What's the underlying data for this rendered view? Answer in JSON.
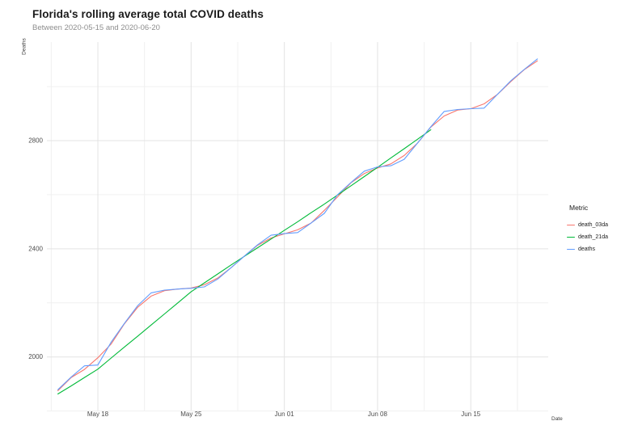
{
  "header": {
    "title": "Florida's rolling average total COVID deaths",
    "subtitle": "Between 2020-05-15 and 2020-06-20"
  },
  "chart_data": {
    "type": "line",
    "title": "Florida's rolling average total COVID deaths",
    "subtitle": "Between 2020-05-15 and 2020-06-20",
    "xlabel": "Date",
    "ylabel": "Deaths",
    "x_dates": [
      "2020-05-15",
      "2020-05-16",
      "2020-05-17",
      "2020-05-18",
      "2020-05-19",
      "2020-05-20",
      "2020-05-21",
      "2020-05-22",
      "2020-05-23",
      "2020-05-24",
      "2020-05-25",
      "2020-05-26",
      "2020-05-27",
      "2020-05-28",
      "2020-05-29",
      "2020-05-30",
      "2020-05-31",
      "2020-06-01",
      "2020-06-02",
      "2020-06-03",
      "2020-06-04",
      "2020-06-05",
      "2020-06-06",
      "2020-06-07",
      "2020-06-08",
      "2020-06-09",
      "2020-06-10",
      "2020-06-11",
      "2020-06-12",
      "2020-06-13",
      "2020-06-14",
      "2020-06-15",
      "2020-06-16",
      "2020-06-17",
      "2020-06-18",
      "2020-06-19",
      "2020-06-20"
    ],
    "series": [
      {
        "name": "death_03da",
        "color": "#F8766D",
        "values": [
          1875,
          1924,
          1954,
          1997,
          2048,
          2123,
          2184,
          2225,
          2245,
          2251,
          2255,
          2267,
          2292,
          2330,
          2373,
          2413,
          2440,
          2455,
          2470,
          2495,
          2542,
          2592,
          2644,
          2678,
          2699,
          2714,
          2745,
          2791,
          2850,
          2891,
          2913,
          2918,
          2936,
          2971,
          3018,
          3062,
          3095
        ]
      },
      {
        "name": "death_21da",
        "color": "#00BA38",
        "values": [
          1863,
          1893,
          1924,
          1955,
          1996,
          2037,
          2077,
          2118,
          2159,
          2200,
          2241,
          2274,
          2307,
          2340,
          2372,
          2404,
          2436,
          2468,
          2500,
          2533,
          2565,
          2599,
          2633,
          2667,
          2701,
          2736,
          2770,
          2805,
          2840,
          null,
          null,
          null,
          null,
          null,
          null,
          null,
          null
        ]
      },
      {
        "name": "deaths",
        "color": "#619CFF",
        "values": [
          1879,
          1926,
          1967,
          1970,
          2055,
          2125,
          2190,
          2237,
          2247,
          2251,
          2254,
          2259,
          2288,
          2330,
          2373,
          2415,
          2450,
          2456,
          2460,
          2495,
          2531,
          2600,
          2645,
          2687,
          2703,
          2707,
          2731,
          2791,
          2851,
          2908,
          2915,
          2918,
          2920,
          2971,
          3021,
          3063,
          3102
        ]
      }
    ],
    "x_tick_labels": [
      "May 18",
      "May 25",
      "Jun 01",
      "Jun 08",
      "Jun 15"
    ],
    "x_tick_day_index": [
      3,
      10,
      17,
      24,
      31
    ],
    "x_minor_day_index": [
      -0.5,
      6.5,
      13.5,
      20.5,
      27.5,
      34.5
    ],
    "y_major_ticks": [
      2000,
      2400,
      2800
    ],
    "y_minor_ticks": [
      1800,
      2200,
      2600,
      3000
    ],
    "y_tick_labels": [
      "2000",
      "2400",
      "2800"
    ],
    "ylim": [
      1800,
      3160
    ],
    "legend": {
      "title": "Metric",
      "position": "right"
    },
    "grid": true
  },
  "colors": {
    "background": "#ffffff",
    "grid_major": "#e3e3e3",
    "grid_minor": "#f0f0f0",
    "tick_label": "#4d4d4d",
    "title": "#1a1a1a",
    "subtitle": "#8e8e8e"
  }
}
